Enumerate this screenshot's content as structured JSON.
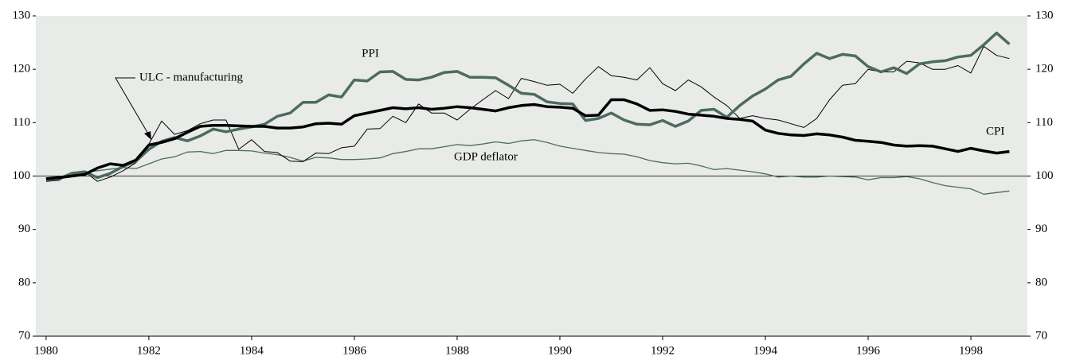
{
  "chart_data": {
    "type": "line",
    "x": [
      1980,
      1980.25,
      1980.5,
      1980.75,
      1981,
      1981.25,
      1981.5,
      1981.75,
      1982,
      1982.25,
      1982.5,
      1982.75,
      1983,
      1983.25,
      1983.5,
      1983.75,
      1984,
      1984.25,
      1984.5,
      1984.75,
      1985,
      1985.25,
      1985.5,
      1985.75,
      1986,
      1986.25,
      1986.5,
      1986.75,
      1987,
      1987.25,
      1987.5,
      1987.75,
      1988,
      1988.25,
      1988.5,
      1988.75,
      1989,
      1989.25,
      1989.5,
      1989.75,
      1990,
      1990.25,
      1990.5,
      1990.75,
      1991,
      1991.25,
      1991.5,
      1991.75,
      1992,
      1992.25,
      1992.5,
      1992.75,
      1993,
      1993.25,
      1993.5,
      1993.75,
      1994,
      1994.25,
      1994.5,
      1994.75,
      1995,
      1995.25,
      1995.5,
      1995.75,
      1996,
      1996.25,
      1996.5,
      1996.75,
      1997,
      1997.25,
      1997.5,
      1997.75,
      1998,
      1998.25,
      1998.5,
      1998.75
    ],
    "series": [
      {
        "name": "CPI",
        "color": "#000000",
        "width": 3.5,
        "values": [
          99.5,
          99.7,
          100,
          100.3,
          101.5,
          102.3,
          102,
          103,
          105.8,
          106.3,
          107,
          108.2,
          109.3,
          109.5,
          109.5,
          109.4,
          109.3,
          109.3,
          109,
          109,
          109.2,
          109.8,
          109.9,
          109.7,
          111.3,
          111.8,
          112.3,
          112.8,
          112.6,
          112.8,
          112.5,
          112.7,
          113,
          112.8,
          112.5,
          112.2,
          112.8,
          113.2,
          113.4,
          113,
          112.9,
          112.7,
          111.3,
          111.4,
          114.3,
          114.3,
          113.5,
          112.3,
          112.4,
          112.1,
          111.6,
          111.4,
          111.2,
          110.8,
          110.6,
          110.3,
          108.6,
          108,
          107.7,
          107.6,
          107.9,
          107.7,
          107.3,
          106.7,
          106.5,
          106.3,
          105.8,
          105.6,
          105.7,
          105.6,
          105.1,
          104.6,
          105.2,
          104.7,
          104.3,
          104.6
        ]
      },
      {
        "name": "PPI",
        "color": "#4d6b60",
        "width": 3.5,
        "values": [
          99.3,
          99.5,
          100.5,
          100.8,
          99.7,
          100.5,
          101.8,
          102.8,
          105,
          106.5,
          107.2,
          106.6,
          107.5,
          108.8,
          108.3,
          108.8,
          109.2,
          109.7,
          111.2,
          111.8,
          113.8,
          113.8,
          115.2,
          114.8,
          118,
          117.8,
          119.5,
          119.6,
          118.1,
          118,
          118.5,
          119.4,
          119.6,
          118.5,
          118.5,
          118.4,
          117,
          115.5,
          115.3,
          113.9,
          113.6,
          113.5,
          110.4,
          110.8,
          111.8,
          110.5,
          109.7,
          109.6,
          110.4,
          109.3,
          110.3,
          112.3,
          112.5,
          111,
          113.2,
          115,
          116.3,
          118,
          118.7,
          121,
          123,
          122,
          122.8,
          122.5,
          120.5,
          119.5,
          120.3,
          119.2,
          121,
          121.4,
          121.6,
          122.3,
          122.6,
          124.6,
          126.8,
          124.7
        ]
      },
      {
        "name": "ULC - manufacturing",
        "color": "#000000",
        "width": 1,
        "values": [
          99,
          99.2,
          100.5,
          100.8,
          99,
          99.8,
          101,
          102.5,
          106,
          110.3,
          107.8,
          108.5,
          109.8,
          110.5,
          110.5,
          105,
          106.8,
          104.6,
          104.4,
          102.8,
          102.7,
          104.3,
          104.2,
          105.3,
          105.6,
          108.8,
          108.9,
          111.2,
          110,
          113.5,
          111.8,
          111.8,
          110.5,
          112.5,
          114.3,
          116,
          114.5,
          118.3,
          117.7,
          117,
          117.2,
          115.5,
          118.2,
          120.5,
          118.8,
          118.5,
          118,
          120.3,
          117.3,
          116,
          118,
          116.7,
          114.8,
          113.2,
          110.8,
          111.3,
          110.8,
          110.5,
          109.8,
          109.1,
          110.8,
          114.3,
          117,
          117.3,
          120,
          119.5,
          119.5,
          121.5,
          121.2,
          120,
          120,
          120.7,
          119.3,
          124.3,
          122.6,
          122
        ]
      },
      {
        "name": "GDP deflator",
        "color": "#4d6b60",
        "width": 1.3,
        "values": [
          99.5,
          99.8,
          100.3,
          100.7,
          101,
          101.3,
          101.6,
          101.4,
          102.3,
          103.2,
          103.6,
          104.5,
          104.6,
          104.2,
          104.8,
          104.8,
          104.7,
          104.3,
          104,
          103.5,
          102.8,
          103.5,
          103.4,
          103.1,
          103.1,
          103.2,
          103.4,
          104.2,
          104.6,
          105.1,
          105.1,
          105.5,
          105.9,
          105.7,
          106,
          106.4,
          106.1,
          106.6,
          106.8,
          106.3,
          105.6,
          105.2,
          104.8,
          104.4,
          104.2,
          104.1,
          103.6,
          102.9,
          102.5,
          102.3,
          102.4,
          101.9,
          101.2,
          101.4,
          101.1,
          100.8,
          100.4,
          99.8,
          100,
          99.8,
          99.8,
          100,
          99.9,
          99.8,
          99.3,
          99.7,
          99.7,
          99.9,
          99.5,
          98.8,
          98.2,
          97.9,
          97.6,
          96.6,
          96.9,
          97.2
        ]
      }
    ],
    "xlim": [
      1979.8,
      1999.1
    ],
    "xticks": [
      1980,
      1982,
      1984,
      1986,
      1988,
      1990,
      1992,
      1994,
      1996,
      1998
    ],
    "ylim": [
      70,
      130
    ],
    "yticks": [
      70,
      80,
      90,
      100,
      110,
      120,
      130
    ],
    "y2lim": [
      70,
      130
    ],
    "y2ticks": [
      70,
      80,
      90,
      100,
      110,
      120,
      130
    ],
    "reference_line": 100,
    "background": "#e8ebe8"
  }
}
